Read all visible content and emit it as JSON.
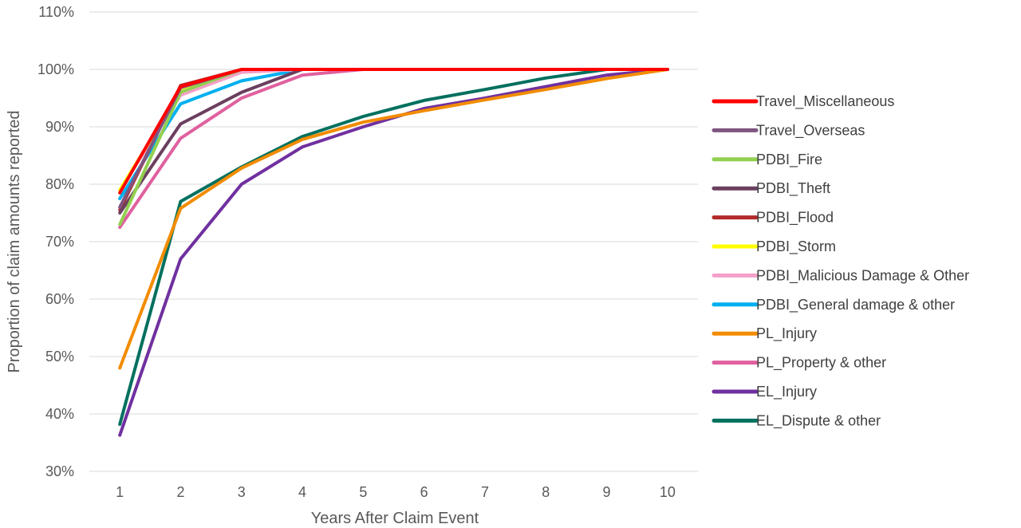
{
  "chart_data": {
    "type": "line",
    "title": "",
    "xlabel": "Years After Claim Event",
    "ylabel": "Proportion of claim amounts reported",
    "x": [
      1,
      2,
      3,
      4,
      5,
      6,
      7,
      8,
      9,
      10
    ],
    "xticks": [
      "1",
      "2",
      "3",
      "4",
      "5",
      "6",
      "7",
      "8",
      "9",
      "10"
    ],
    "ylim": [
      30,
      110
    ],
    "yticks": [
      "30%",
      "40%",
      "50%",
      "60%",
      "70%",
      "80%",
      "90%",
      "100%",
      "110%"
    ],
    "yunit": "%",
    "grid": "horizontal",
    "legend": "right",
    "series": [
      {
        "name": "Travel_Miscellaneous",
        "color": "#ff0000",
        "values": [
          78.5,
          97.0,
          100,
          100,
          100,
          100,
          100,
          100,
          100,
          100
        ]
      },
      {
        "name": "Travel_Overseas",
        "color": "#7f5580",
        "values": [
          76.0,
          96.8,
          100,
          100,
          100,
          100,
          100,
          100,
          100,
          100
        ]
      },
      {
        "name": "PDBI_Fire",
        "color": "#92d050",
        "values": [
          73.0,
          96.0,
          100,
          100,
          100,
          100,
          100,
          100,
          100,
          100
        ]
      },
      {
        "name": "PDBI_Theft",
        "color": "#6b3f5f",
        "values": [
          75.0,
          90.5,
          96.0,
          100,
          100,
          100,
          100,
          100,
          100,
          100
        ]
      },
      {
        "name": "PDBI_Flood",
        "color": "#b22a2a",
        "values": [
          75.5,
          97.2,
          100,
          100,
          100,
          100,
          100,
          100,
          100,
          100
        ]
      },
      {
        "name": "PDBI_Storm",
        "color": "#ffff00",
        "values": [
          79.0,
          96.2,
          100,
          100,
          100,
          100,
          100,
          100,
          100,
          100
        ]
      },
      {
        "name": "PDBI_Malicious Damage & Other",
        "color": "#f4a0c8",
        "values": [
          79.0,
          95.5,
          99.5,
          100,
          100,
          100,
          100,
          100,
          100,
          100
        ]
      },
      {
        "name": "PDBI_General damage & other",
        "color": "#00b0f0",
        "values": [
          77.5,
          94.0,
          98.0,
          100,
          100,
          100,
          100,
          100,
          100,
          100
        ]
      },
      {
        "name": "PL_Injury",
        "color": "#f28c00",
        "values": [
          48.0,
          75.8,
          82.8,
          87.8,
          90.8,
          92.8,
          94.7,
          96.5,
          98.4,
          100
        ]
      },
      {
        "name": "PL_Property & other",
        "color": "#e0609f",
        "values": [
          72.5,
          88.0,
          95.0,
          99.0,
          100,
          100,
          100,
          100,
          100,
          100
        ]
      },
      {
        "name": "EL_Injury",
        "color": "#7030a0",
        "values": [
          36.3,
          67.0,
          80.0,
          86.5,
          90.0,
          93.2,
          95.0,
          97.0,
          99.0,
          100
        ]
      },
      {
        "name": "EL_Dispute & other",
        "color": "#00705e",
        "values": [
          38.2,
          77.0,
          83.0,
          88.3,
          91.8,
          94.6,
          96.5,
          98.5,
          100,
          100
        ]
      }
    ]
  }
}
